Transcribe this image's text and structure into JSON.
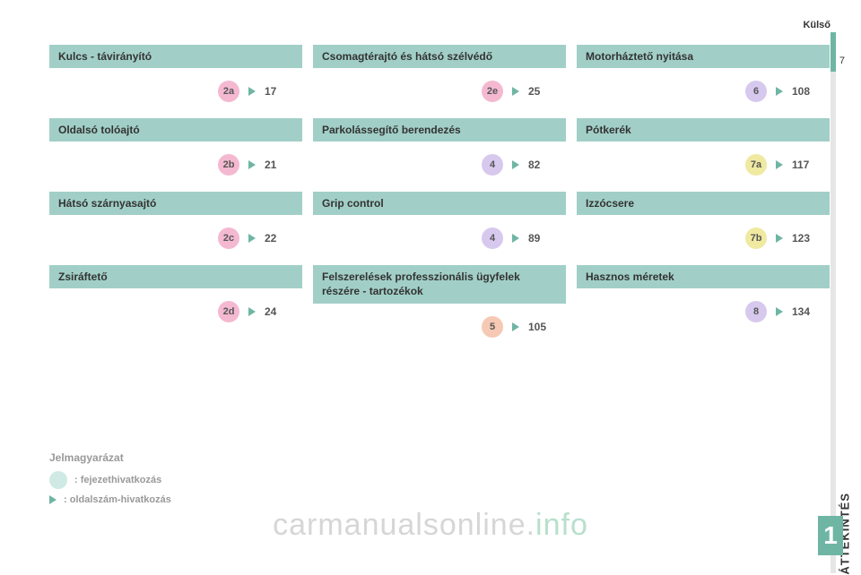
{
  "header": {
    "section": "Külső",
    "page": "7"
  },
  "chapter": {
    "number": "1",
    "label": "ÁTTEKINTÉS"
  },
  "columns": [
    [
      {
        "title": "Kulcs - távirányító",
        "badge": "2a",
        "badge_color": "pink",
        "page": "17"
      },
      {
        "title": "Oldalsó tolóajtó",
        "badge": "2b",
        "badge_color": "pink",
        "page": "21"
      },
      {
        "title": "Hátsó szárnyasajtó",
        "badge": "2c",
        "badge_color": "pink",
        "page": "22"
      },
      {
        "title": "Zsiráftető",
        "badge": "2d",
        "badge_color": "pink",
        "page": "24"
      }
    ],
    [
      {
        "title": "Csomagtérajtó és hátsó szélvédő",
        "badge": "2e",
        "badge_color": "pink",
        "page": "25"
      },
      {
        "title": "Parkolássegítő berendezés",
        "badge": "4",
        "badge_color": "lav",
        "page": "82"
      },
      {
        "title": "Grip control",
        "badge": "4",
        "badge_color": "lav",
        "page": "89"
      },
      {
        "title": "Felszerelések professzionális ügyfelek részére - tartozékok",
        "tall": true,
        "badge": "5",
        "badge_color": "peach",
        "page": "105"
      }
    ],
    [
      {
        "title": "Motorháztető nyitása",
        "badge": "6",
        "badge_color": "lav",
        "page": "108"
      },
      {
        "title": "Pótkerék",
        "badge": "7a",
        "badge_color": "yel",
        "page": "117"
      },
      {
        "title": "Izzócsere",
        "badge": "7b",
        "badge_color": "yel",
        "page": "123"
      },
      {
        "title": "Hasznos méretek",
        "badge": "8",
        "badge_color": "lav",
        "page": "134"
      }
    ]
  ],
  "legend": {
    "title": "Jelmagyarázat",
    "chapter": ": fejezethivatkozás",
    "page": ": oldalszám-hivatkozás"
  },
  "watermark": {
    "part1": "carmanualsonline.",
    "part2": "info"
  }
}
